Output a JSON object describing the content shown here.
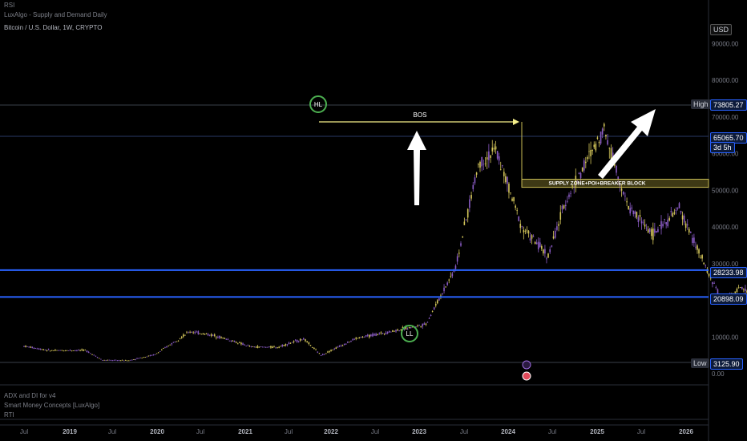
{
  "indicators": {
    "top_1": "RSI",
    "top_2": "LuxAlgo - Supply and Demand Daily",
    "bottom_1": "ADX and DI for v4",
    "bottom_2": "Smart Money Concepts [LuxAlgo]",
    "bottom_3": "RTI"
  },
  "symbol_title": "Bitcoin / U.S. Dollar, 1W, CRYPTO",
  "currency": "USD",
  "annotations": {
    "hl": "HL",
    "ll": "LL",
    "bos": "BOS",
    "zone": "SUPPLY ZONE+POI+BREAKER BLOCK"
  },
  "price_labels": {
    "high_tag": "High",
    "high": "73805.27",
    "current": "65065.70",
    "countdown": "3d 5h",
    "level1": "28233.98",
    "level2": "20898.09",
    "low_tag": "Low",
    "low": "3125.90"
  },
  "colors": {
    "background": "#000000",
    "candle": "#d4c65a",
    "candle_down": "#8a5bc4",
    "level_line": "#2962ff",
    "bos_line": "#f5ef8a",
    "projection": "#26b5d6",
    "circle": "#4caf50",
    "zone": "#8a7f2e"
  },
  "chart_data": {
    "type": "line",
    "title": "Bitcoin / U.S. Dollar, 1W, CRYPTO",
    "xlabel": "",
    "ylabel": "",
    "x_ticks": [
      "Jul",
      "2019",
      "Jul",
      "2020",
      "Jul",
      "2021",
      "Jul",
      "2022",
      "Jul",
      "2023",
      "Jul",
      "2024",
      "Jul",
      "2025",
      "Jul",
      "2026"
    ],
    "y_ticks": [
      "90000.00",
      "80000.00",
      "70000.00",
      "60000.00",
      "50000.00",
      "40000.00",
      "30000.00",
      "20000.00",
      "10000.00",
      "0.00"
    ],
    "ylim": [
      0,
      95000
    ],
    "grid": false,
    "series": [
      {
        "values": [
          [
            2018.5,
            7500
          ],
          [
            2018.65,
            6300
          ],
          [
            2018.85,
            6400
          ],
          [
            2018.95,
            3700
          ],
          [
            2019.1,
            3600
          ],
          [
            2019.25,
            5200
          ],
          [
            2019.45,
            11500
          ],
          [
            2019.6,
            10300
          ],
          [
            2019.8,
            7300
          ],
          [
            2019.95,
            7200
          ],
          [
            2020.1,
            9500
          ],
          [
            2020.2,
            5000
          ],
          [
            2020.4,
            9600
          ],
          [
            2020.6,
            11500
          ],
          [
            2020.8,
            13500
          ],
          [
            2020.97,
            29000
          ],
          [
            2021.1,
            57000
          ],
          [
            2021.2,
            61000
          ],
          [
            2021.35,
            40000
          ],
          [
            2021.5,
            32000
          ],
          [
            2021.6,
            47000
          ],
          [
            2021.82,
            67000
          ],
          [
            2021.95,
            46000
          ],
          [
            2022.1,
            38000
          ],
          [
            2022.25,
            45000
          ],
          [
            2022.4,
            29000
          ],
          [
            2022.5,
            19500
          ],
          [
            2022.6,
            23500
          ],
          [
            2022.75,
            19200
          ],
          [
            2022.88,
            15700
          ],
          [
            2023.0,
            16500
          ],
          [
            2023.1,
            23500
          ],
          [
            2023.25,
            28500
          ],
          [
            2023.4,
            27000
          ],
          [
            2023.55,
            30500
          ],
          [
            2023.7,
            26000
          ],
          [
            2023.85,
            35000
          ],
          [
            2024.0,
            42500
          ],
          [
            2024.1,
            45000
          ],
          [
            2024.2,
            73805
          ],
          [
            2024.25,
            65065
          ]
        ]
      },
      {
        "values": [
          [
            2024.25,
            65065
          ],
          [
            2024.35,
            58000
          ],
          [
            2024.5,
            66000
          ],
          [
            2024.7,
            53000
          ],
          [
            2024.95,
            70000
          ],
          [
            2025.1,
            62000
          ],
          [
            2025.3,
            82000
          ]
        ]
      }
    ],
    "horizontal_levels": [
      28233.98,
      20898.09
    ],
    "zone": [
      50800,
      53000
    ]
  }
}
